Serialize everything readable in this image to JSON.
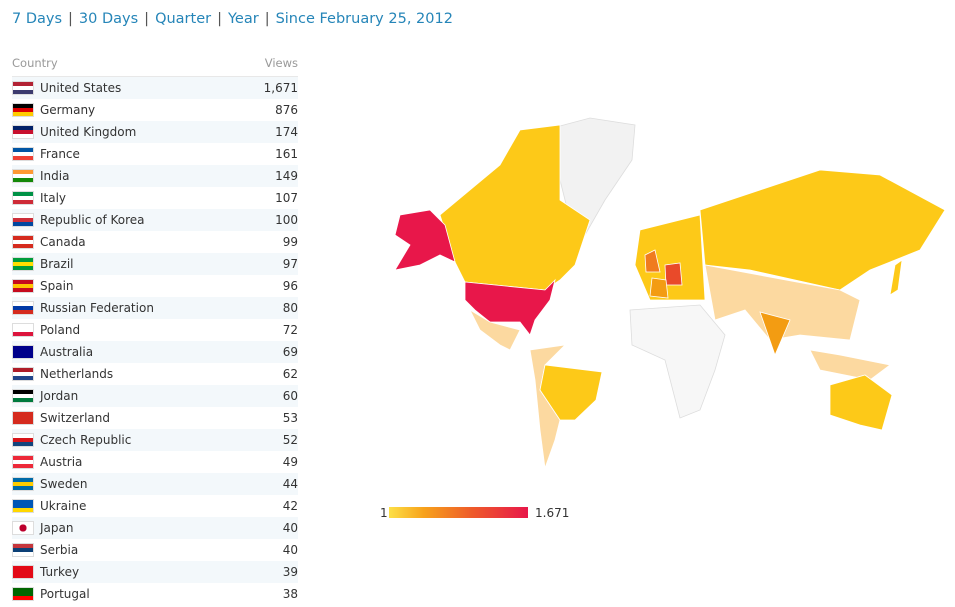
{
  "nav": {
    "links": [
      "7 Days",
      "30 Days",
      "Quarter",
      "Year",
      "Since February 25, 2012"
    ],
    "separator": "|"
  },
  "table": {
    "header": [
      "Country",
      "Views"
    ],
    "rows": [
      [
        "United States",
        "1,671"
      ],
      [
        "Germany",
        "876"
      ],
      [
        "United Kingdom",
        "174"
      ],
      [
        "France",
        "161"
      ],
      [
        "India",
        "149"
      ],
      [
        "Italy",
        "107"
      ],
      [
        "Republic of Korea",
        "100"
      ],
      [
        "Canada",
        "99"
      ],
      [
        "Brazil",
        "97"
      ],
      [
        "Spain",
        "96"
      ],
      [
        "Russian Federation",
        "80"
      ],
      [
        "Poland",
        "72"
      ],
      [
        "Australia",
        "69"
      ],
      [
        "Netherlands",
        "62"
      ],
      [
        "Jordan",
        "60"
      ],
      [
        "Switzerland",
        "53"
      ],
      [
        "Czech Republic",
        "52"
      ],
      [
        "Austria",
        "49"
      ],
      [
        "Sweden",
        "44"
      ],
      [
        "Ukraine",
        "42"
      ],
      [
        "Japan",
        "40"
      ],
      [
        "Serbia",
        "40"
      ],
      [
        "Turkey",
        "39"
      ],
      [
        "Portugal",
        "38"
      ]
    ]
  },
  "map": {
    "legend": {
      "min": "1",
      "max": "1.671"
    }
  }
}
